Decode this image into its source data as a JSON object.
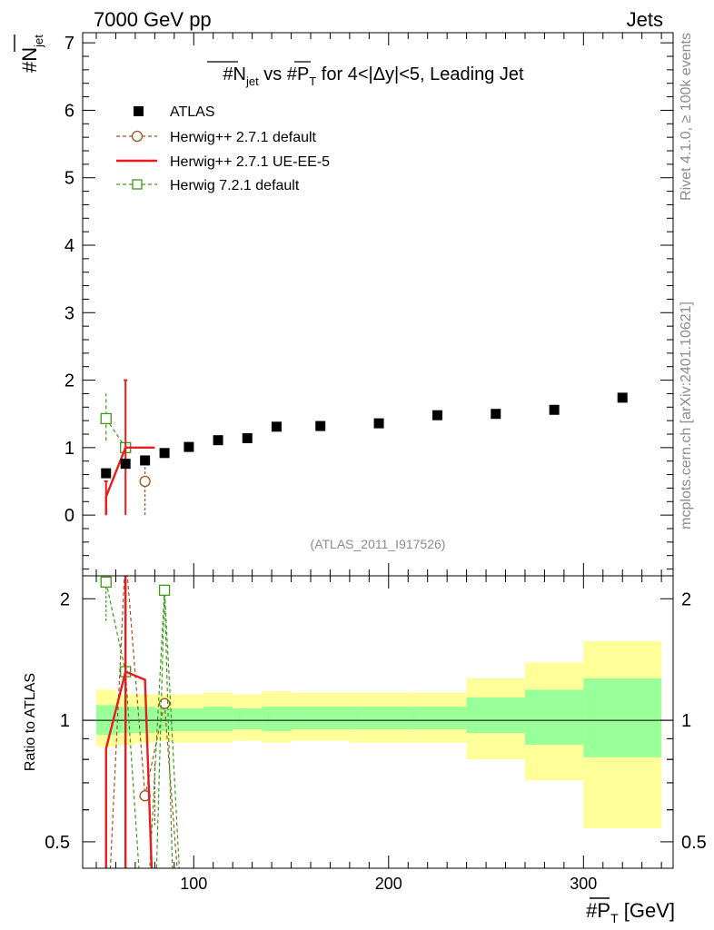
{
  "header": {
    "left": "7000 GeV pp",
    "right": "Jets"
  },
  "side_labels": {
    "rivet": "Rivet 4.1.0, ≥ 100k events",
    "mcplots": "mcplots.cern.ch [arXiv:2401.10621]"
  },
  "watermark": "(ATLAS_2011_I917526)",
  "colors": {
    "data": "#000000",
    "herwigpp_default": "#a0521e",
    "herwigpp_ue": "#e81c1c",
    "herwig7": "#3c9a14",
    "band_inner": "#99ff99",
    "band_outer": "#ffff99"
  },
  "chart_data": [
    {
      "panel": "main",
      "type": "scatter",
      "title": "#N_jet vs #P_T for 4<|Δy|<5, Leading Jet",
      "title_parts": {
        "a": "#N",
        "a_sub": "jet",
        "b": " vs #P",
        "b_sub": "T",
        "c": " for 4<|Δy|<5, Leading Jet"
      },
      "ylabel": {
        "main": "#N",
        "sub": "jet"
      },
      "xlim": [
        43,
        346
      ],
      "ylim": [
        -0.9,
        7.15
      ],
      "yticks": [
        0,
        1,
        2,
        3,
        4,
        5,
        6,
        7
      ],
      "legend_position": "top-left",
      "series": [
        {
          "name": "ATLAS",
          "style": "data-square",
          "x": [
            55,
            65,
            75,
            85,
            97.5,
            112.5,
            127.5,
            142.5,
            165,
            195,
            225,
            255,
            285,
            320
          ],
          "y": [
            0.62,
            0.76,
            0.81,
            0.92,
            1.01,
            1.11,
            1.14,
            1.31,
            1.32,
            1.36,
            1.48,
            1.5,
            1.56,
            1.74
          ]
        },
        {
          "name": "Herwig++ 2.7.1 default",
          "style": "dashed-circle",
          "x": [
            75
          ],
          "y": [
            0.5
          ],
          "yerr_low": [
            0.5
          ],
          "yerr_high": [
            0.25
          ],
          "xerr": [
            5
          ]
        },
        {
          "name": "Herwig++ 2.7.1 UE-EE-5",
          "style": "solid-line",
          "x": [
            55,
            65,
            75
          ],
          "y": [
            0.27,
            1.0,
            1.0
          ],
          "yerr_low": [
            0.27,
            1.0,
            0
          ],
          "yerr_high": [
            0.23,
            1.0,
            0
          ],
          "step_edges": [
            50,
            60,
            70,
            80
          ]
        },
        {
          "name": "Herwig 7.2.1 default",
          "style": "dashed-square",
          "x": [
            55,
            65
          ],
          "y": [
            1.43,
            1.0
          ],
          "yerr_low": [
            0.33,
            0
          ],
          "yerr_high": [
            0.37,
            0
          ]
        }
      ]
    },
    {
      "panel": "ratio",
      "type": "line",
      "ylabel": "Ratio to ATLAS",
      "xlabel": {
        "main": "#P",
        "sub": "T",
        "unit": " [GeV]"
      },
      "xlim": [
        43,
        346
      ],
      "ylim": [
        0.43,
        2.28
      ],
      "yscale": "log",
      "yticks": [
        0.5,
        1,
        2
      ],
      "ytick_labels": [
        "0.5",
        "1",
        "2"
      ],
      "xticks": [
        100,
        200,
        300
      ],
      "xtick_labels": [
        "100",
        "200",
        "300"
      ],
      "bands": {
        "edges": [
          50,
          60,
          70,
          80,
          90,
          105,
          120,
          135,
          150,
          180,
          210,
          240,
          270,
          300,
          340
        ],
        "inner_low": [
          0.92,
          0.93,
          0.93,
          0.94,
          0.94,
          0.94,
          0.95,
          0.94,
          0.95,
          0.95,
          0.95,
          0.93,
          0.87,
          0.81
        ],
        "inner_high": [
          1.09,
          1.08,
          1.08,
          1.07,
          1.07,
          1.08,
          1.07,
          1.08,
          1.08,
          1.08,
          1.08,
          1.14,
          1.19,
          1.27
        ],
        "outer_low": [
          0.86,
          0.87,
          0.88,
          0.89,
          0.88,
          0.88,
          0.89,
          0.88,
          0.89,
          0.88,
          0.88,
          0.8,
          0.71,
          0.54
        ],
        "outer_high": [
          1.19,
          1.16,
          1.16,
          1.16,
          1.16,
          1.17,
          1.16,
          1.18,
          1.17,
          1.17,
          1.17,
          1.27,
          1.39,
          1.57
        ]
      },
      "series": [
        {
          "name": "Herwig++ 2.7.1 default",
          "style": "dashed-circle",
          "x": [
            55,
            65,
            75,
            85,
            95
          ],
          "y": [
            0.2,
            2.6,
            0.65,
            1.1,
            0.2
          ]
        },
        {
          "name": "Herwig++ 2.7.1 UE-EE-5",
          "style": "solid-line",
          "x": [
            55,
            65,
            75,
            85
          ],
          "y": [
            0.2,
            1.32,
            1.26,
            0.2
          ]
        },
        {
          "name": "Herwig 7.2.1 default",
          "style": "dashed-square",
          "x": [
            55,
            65,
            75,
            85,
            95
          ],
          "y": [
            2.2,
            1.32,
            0.2,
            2.1,
            0.2
          ]
        }
      ]
    }
  ]
}
